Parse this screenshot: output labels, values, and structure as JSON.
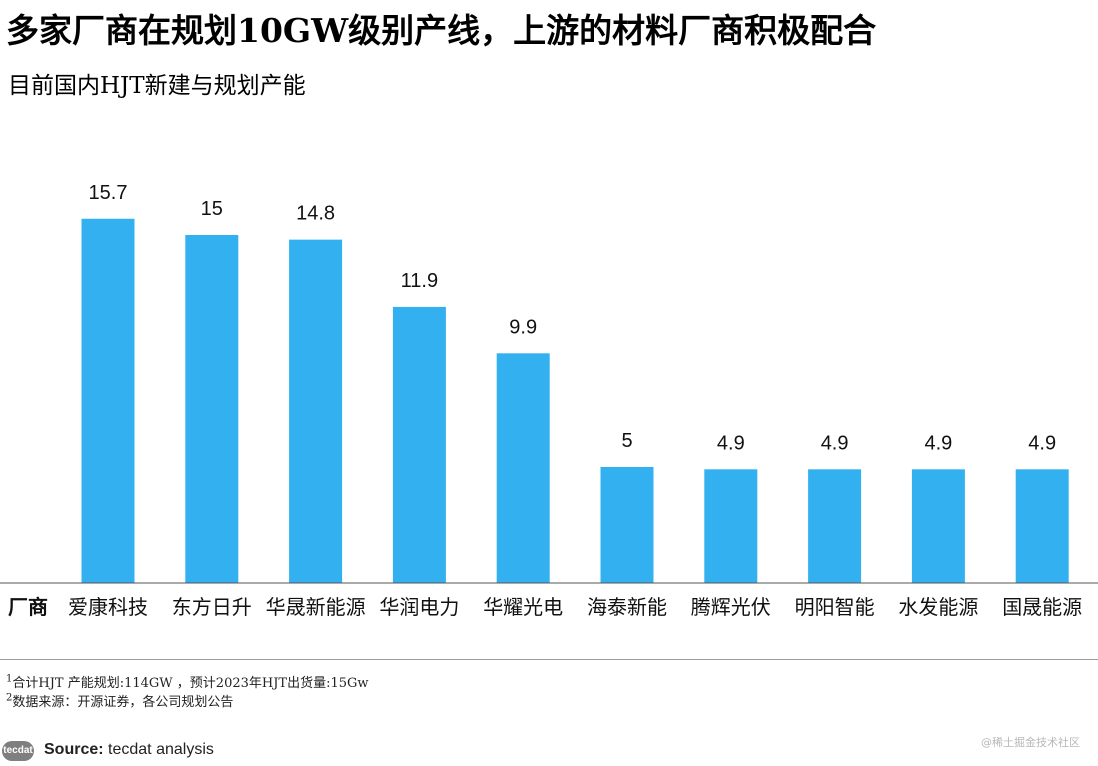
{
  "header": {
    "title": "多家厂商在规划10GW级别产线，上游的材料厂商积极配合",
    "subtitle": "目前国内HJT新建与规划产能"
  },
  "chart_data": {
    "type": "bar",
    "category_axis_label": "厂商",
    "categories": [
      "爱康科技",
      "东方日升",
      "华晟新能源",
      "华润电力",
      "华耀光电",
      "海泰新能",
      "腾辉光伏",
      "明阳智能",
      "水发能源",
      "国晟能源"
    ],
    "values": [
      15.7,
      15,
      14.8,
      11.9,
      9.9,
      5,
      4.9,
      4.9,
      4.9,
      4.9
    ],
    "value_labels": [
      "15.7",
      "15",
      "14.8",
      "11.9",
      "9.9",
      "5",
      "4.9",
      "4.9",
      "4.9",
      "4.9"
    ],
    "bar_color": "#33b0f0",
    "ylim": [
      0,
      17.5
    ],
    "grid": false,
    "legend": "none"
  },
  "footnotes": {
    "fn1_marker": "1",
    "fn1_text": "合计HJT 产能规划:114GW ，预计2023年HJT出货量:15Gw",
    "fn2_marker": "2",
    "fn2_text": "数据来源：开源证券，各公司规划公告"
  },
  "source": {
    "logo_text": "tecdat",
    "label": "Source:",
    "text": "tecdat analysis"
  },
  "watermark": "@稀土掘金技术社区"
}
